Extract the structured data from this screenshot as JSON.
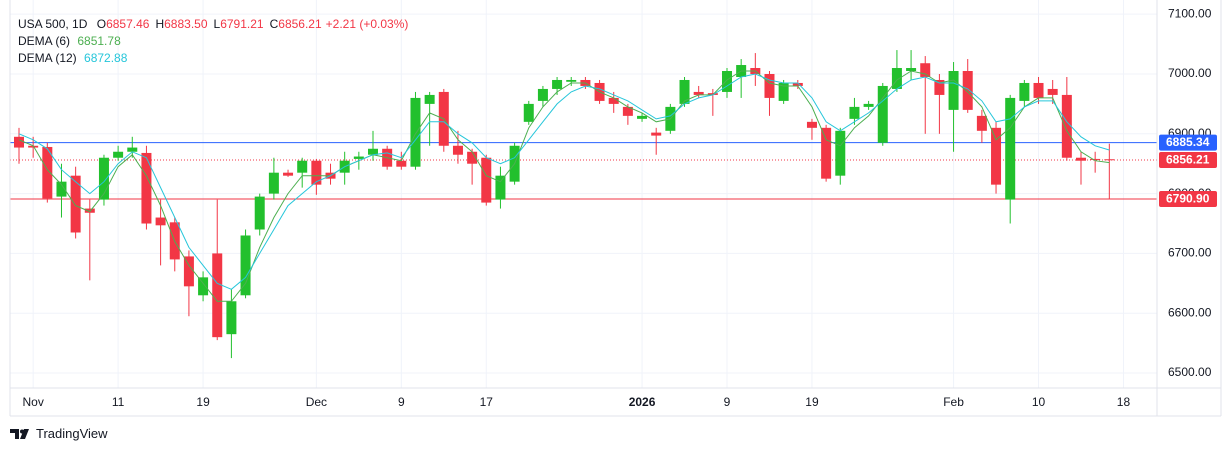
{
  "brand": "TradingView",
  "chart_data": {
    "type": "candlestick",
    "legend": {
      "symbol": "USA 500, 1D",
      "fields": [
        {
          "key": "O",
          "value": "6857.46"
        },
        {
          "key": "H",
          "value": "6883.50"
        },
        {
          "key": "L",
          "value": "6791.21"
        },
        {
          "key": "C",
          "value": "6856.21"
        }
      ],
      "change": "+2.21 (+0.03%)"
    },
    "categories": [
      null,
      "Nov",
      null,
      null,
      null,
      null,
      null,
      "11",
      null,
      null,
      null,
      null,
      null,
      "19",
      null,
      null,
      null,
      null,
      null,
      null,
      null,
      "Dec",
      null,
      null,
      null,
      null,
      null,
      "9",
      null,
      null,
      null,
      null,
      null,
      "17",
      null,
      null,
      null,
      null,
      null,
      null,
      null,
      null,
      null,
      null,
      "2026",
      null,
      null,
      null,
      null,
      null,
      "9",
      null,
      null,
      null,
      null,
      null,
      "19",
      null,
      null,
      null,
      null,
      null,
      null,
      null,
      null,
      null,
      "Feb",
      null,
      null,
      null,
      null,
      null,
      "10",
      null,
      null,
      null,
      null,
      null,
      "18"
    ],
    "open": [
      6895,
      6880,
      6878,
      6795,
      6830,
      6775,
      6790,
      6860,
      6870,
      6868,
      6760,
      6752,
      6695,
      6630,
      6700,
      6565,
      6630,
      6740,
      6800,
      6835,
      6835,
      6855,
      6835,
      6835,
      6858,
      6865,
      6875,
      6855,
      6845,
      6950,
      6970,
      6880,
      6870,
      6860,
      6790,
      6820,
      6920,
      6955,
      6975,
      6987,
      6990,
      6985,
      6960,
      6945,
      6925,
      6902,
      6905,
      6950,
      6970,
      6968,
      6970,
      6995,
      7010,
      7000,
      6955,
      6985,
      6920,
      6910,
      6830,
      6925,
      6945,
      6885,
      6975,
      7005,
      7018,
      6990,
      6940,
      7005,
      6930,
      6910,
      6790,
      6955,
      6985,
      6975,
      6965,
      6860,
      6858,
      6857.46,
      null
    ],
    "high": [
      6910,
      6895,
      6885,
      6850,
      6845,
      6790,
      6865,
      6880,
      6895,
      6880,
      6790,
      6760,
      6705,
      6670,
      6790,
      6640,
      6740,
      6800,
      6860,
      6840,
      6860,
      6858,
      6850,
      6870,
      6870,
      6905,
      6880,
      6870,
      6970,
      6970,
      6975,
      6905,
      6875,
      6865,
      6845,
      6885,
      6955,
      6980,
      6995,
      6995,
      6995,
      6990,
      6970,
      6950,
      6935,
      6910,
      6950,
      6995,
      6980,
      6975,
      7010,
      7025,
      7035,
      7005,
      6990,
      6990,
      6925,
      6915,
      6910,
      6960,
      6955,
      6985,
      7040,
      7040,
      7030,
      7000,
      7020,
      7025,
      6940,
      6920,
      6965,
      6990,
      6995,
      6990,
      6995,
      6870,
      6870,
      6883.5,
      null
    ],
    "low": [
      6850,
      6860,
      6785,
      6760,
      6725,
      6655,
      6780,
      6855,
      6860,
      6740,
      6680,
      6670,
      6595,
      6620,
      6555,
      6525,
      6625,
      6730,
      6790,
      6828,
      6810,
      6798,
      6815,
      6815,
      6840,
      6855,
      6840,
      6840,
      6840,
      6880,
      6870,
      6850,
      6815,
      6780,
      6775,
      6815,
      6915,
      6945,
      6965,
      6980,
      6975,
      6950,
      6935,
      6915,
      6920,
      6865,
      6900,
      6945,
      6960,
      6930,
      6960,
      6960,
      6980,
      6930,
      6950,
      6975,
      6890,
      6820,
      6815,
      6915,
      6940,
      6880,
      6970,
      6990,
      6900,
      6900,
      6870,
      6935,
      6885,
      6800,
      6750,
      6945,
      6950,
      6950,
      6855,
      6815,
      6835,
      6791.21,
      null
    ],
    "close": [
      6877,
      6877,
      6792,
      6820,
      6735,
      6768,
      6860,
      6870,
      6877,
      6750,
      6747,
      6690,
      6645,
      6660,
      6560,
      6620,
      6730,
      6795,
      6835,
      6830,
      6855,
      6815,
      6825,
      6855,
      6862,
      6875,
      6845,
      6845,
      6960,
      6965,
      6880,
      6865,
      6850,
      6785,
      6830,
      6880,
      6950,
      6975,
      6990,
      6990,
      6980,
      6955,
      6950,
      6930,
      6930,
      6897,
      6945,
      6990,
      6965,
      6965,
      7005,
      7015,
      7000,
      6960,
      6985,
      6980,
      6910,
      6825,
      6905,
      6945,
      6950,
      6980,
      7010,
      7010,
      6995,
      6965,
      7005,
      6940,
      6905,
      6815,
      6960,
      6985,
      6960,
      6965,
      6860,
      6855,
      6857,
      6856.21,
      null
    ],
    "up_color": "#22c02d",
    "down_color": "#f23645",
    "series": [
      {
        "name": "DEMA (6)",
        "color": "#4caf50",
        "values": [
          6890,
          6880,
          6840,
          6815,
          6780,
          6770,
          6800,
          6845,
          6865,
          6830,
          6780,
          6720,
          6680,
          6650,
          6620,
          6620,
          6650,
          6710,
          6760,
          6800,
          6830,
          6830,
          6830,
          6845,
          6855,
          6865,
          6860,
          6855,
          6900,
          6935,
          6925,
          6890,
          6870,
          6830,
          6820,
          6850,
          6910,
          6945,
          6970,
          6985,
          6985,
          6970,
          6960,
          6945,
          6935,
          6920,
          6925,
          6955,
          6965,
          6965,
          6990,
          7005,
          7005,
          6985,
          6980,
          6980,
          6945,
          6890,
          6880,
          6910,
          6930,
          6960,
          6990,
          7005,
          7000,
          6985,
          6990,
          6970,
          6945,
          6890,
          6910,
          6945,
          6960,
          6960,
          6905,
          6870,
          6855,
          6851.78,
          null
        ]
      },
      {
        "name": "DEMA (12)",
        "color": "#26c6da",
        "values": [
          6900,
          6890,
          6875,
          6840,
          6820,
          6800,
          6820,
          6850,
          6870,
          6860,
          6810,
          6760,
          6710,
          6680,
          6650,
          6640,
          6660,
          6700,
          6740,
          6780,
          6800,
          6820,
          6830,
          6845,
          6855,
          6865,
          6868,
          6860,
          6890,
          6920,
          6920,
          6900,
          6885,
          6860,
          6850,
          6860,
          6890,
          6920,
          6950,
          6970,
          6980,
          6975,
          6965,
          6955,
          6940,
          6925,
          6930,
          6950,
          6960,
          6965,
          6980,
          6995,
          7000,
          6990,
          6985,
          6985,
          6960,
          6920,
          6905,
          6920,
          6935,
          6955,
          6975,
          6990,
          6995,
          6985,
          6985,
          6975,
          6955,
          6920,
          6925,
          6945,
          6955,
          6955,
          6920,
          6895,
          6880,
          6872.88,
          null
        ]
      }
    ],
    "ylim": [
      6475,
      7107
    ],
    "yticks": [
      {
        "value": 6500,
        "label": "6500.00"
      },
      {
        "value": 6600,
        "label": "6600.00"
      },
      {
        "value": 6700,
        "label": "6700.00"
      },
      {
        "value": 6800,
        "label": "6800.00"
      },
      {
        "value": 6900,
        "label": "6900.00"
      },
      {
        "value": 7000,
        "label": "7000.00"
      },
      {
        "value": 7100,
        "label": "7100.00"
      }
    ],
    "grid": true,
    "price_lines": [
      {
        "value": 6885.34,
        "label": "6885.34",
        "color": "#2962ff",
        "style": "solid"
      },
      {
        "value": 6856.21,
        "label": "6856.21",
        "color": "#f23645",
        "style": "dotted"
      },
      {
        "value": 6790.9,
        "label": "6790.90",
        "color": "#f23645",
        "style": "solid"
      }
    ]
  }
}
